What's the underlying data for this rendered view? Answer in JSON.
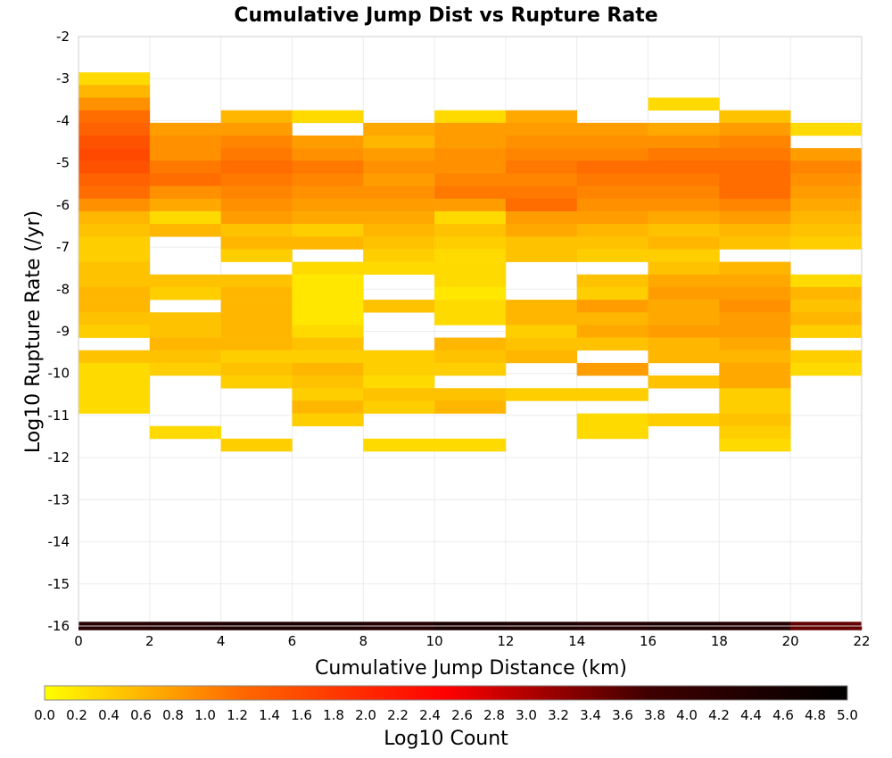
{
  "chart_data": {
    "type": "heatmap",
    "title": "Cumulative Jump Dist vs Rupture Rate",
    "xlabel": "Cumulative Jump Distance (km)",
    "ylabel": "Log10 Rupture Rate (/yr)",
    "xlim": [
      0,
      22
    ],
    "ylim": [
      -16,
      -2
    ],
    "x_ticks": [
      0,
      2,
      4,
      6,
      8,
      10,
      12,
      14,
      16,
      18,
      20,
      22
    ],
    "y_ticks": [
      -2,
      -3,
      -4,
      -5,
      -6,
      -7,
      -8,
      -9,
      -10,
      -11,
      -12,
      -13,
      -14,
      -15,
      -16
    ],
    "x_bin_width": 2,
    "y_bin_height": 0.3,
    "grid": true,
    "colorbar": {
      "label": "Log10 Count",
      "range": [
        0,
        5
      ],
      "ticks": [
        "0.0",
        "0.2",
        "0.4",
        "0.6",
        "0.8",
        "1.0",
        "1.2",
        "1.4",
        "1.6",
        "1.8",
        "2.0",
        "2.2",
        "2.4",
        "2.6",
        "2.8",
        "3.0",
        "3.2",
        "3.4",
        "3.6",
        "3.8",
        "4.0",
        "4.2",
        "4.4",
        "4.6",
        "4.8",
        "5.0"
      ],
      "colormap": [
        "#ffff00",
        "#ff6600",
        "#ff0000",
        "#400000",
        "#000000"
      ]
    },
    "columns": [
      {
        "x": 0,
        "cells": [
          [
            -3.0,
            0.3
          ],
          [
            -3.3,
            0.6
          ],
          [
            -3.6,
            0.9
          ],
          [
            -3.9,
            1.2
          ],
          [
            -4.2,
            1.3
          ],
          [
            -4.5,
            1.5
          ],
          [
            -4.8,
            1.6
          ],
          [
            -5.1,
            1.5
          ],
          [
            -5.4,
            1.3
          ],
          [
            -5.7,
            1.2
          ],
          [
            -6.0,
            0.9
          ],
          [
            -6.3,
            0.6
          ],
          [
            -6.6,
            0.5
          ],
          [
            -6.9,
            0.4
          ],
          [
            -7.2,
            0.4
          ],
          [
            -7.5,
            0.5
          ],
          [
            -7.8,
            0.5
          ],
          [
            -8.1,
            0.6
          ],
          [
            -8.4,
            0.6
          ],
          [
            -8.7,
            0.5
          ],
          [
            -9.0,
            0.4
          ],
          [
            -9.6,
            0.5
          ],
          [
            -9.9,
            0.3
          ],
          [
            -10.2,
            0.3
          ],
          [
            -10.5,
            0.3
          ],
          [
            -10.8,
            0.3
          ]
        ]
      },
      {
        "x": 2,
        "cells": [
          [
            -4.2,
            0.8
          ],
          [
            -4.5,
            0.9
          ],
          [
            -4.8,
            0.9
          ],
          [
            -5.1,
            1.1
          ],
          [
            -5.4,
            1.2
          ],
          [
            -5.7,
            0.9
          ],
          [
            -6.0,
            0.7
          ],
          [
            -6.3,
            0.3
          ],
          [
            -6.6,
            0.6
          ],
          [
            -7.8,
            0.5
          ],
          [
            -8.1,
            0.4
          ],
          [
            -8.7,
            0.5
          ],
          [
            -9.0,
            0.5
          ],
          [
            -9.3,
            0.6
          ],
          [
            -9.6,
            0.5
          ],
          [
            -9.9,
            0.4
          ],
          [
            -11.4,
            0.3
          ]
        ]
      },
      {
        "x": 4,
        "cells": [
          [
            -3.9,
            0.6
          ],
          [
            -4.2,
            0.8
          ],
          [
            -4.5,
            1.0
          ],
          [
            -4.8,
            1.1
          ],
          [
            -5.1,
            1.2
          ],
          [
            -5.4,
            1.1
          ],
          [
            -5.7,
            1.0
          ],
          [
            -6.0,
            0.9
          ],
          [
            -6.3,
            0.8
          ],
          [
            -6.6,
            0.5
          ],
          [
            -6.9,
            0.6
          ],
          [
            -7.2,
            0.4
          ],
          [
            -7.8,
            0.5
          ],
          [
            -8.1,
            0.6
          ],
          [
            -8.4,
            0.6
          ],
          [
            -8.7,
            0.6
          ],
          [
            -9.0,
            0.6
          ],
          [
            -9.3,
            0.6
          ],
          [
            -9.6,
            0.4
          ],
          [
            -9.9,
            0.5
          ],
          [
            -10.2,
            0.4
          ],
          [
            -11.7,
            0.4
          ]
        ]
      },
      {
        "x": 6,
        "cells": [
          [
            -3.9,
            0.3
          ],
          [
            -4.5,
            0.8
          ],
          [
            -4.8,
            0.9
          ],
          [
            -5.1,
            1.1
          ],
          [
            -5.4,
            1.0
          ],
          [
            -5.7,
            0.9
          ],
          [
            -6.0,
            0.8
          ],
          [
            -6.3,
            0.7
          ],
          [
            -6.6,
            0.4
          ],
          [
            -6.9,
            0.6
          ],
          [
            -7.5,
            0.3
          ],
          [
            -7.8,
            0.2
          ],
          [
            -8.1,
            0.2
          ],
          [
            -8.4,
            0.2
          ],
          [
            -8.7,
            0.2
          ],
          [
            -9.0,
            0.3
          ],
          [
            -9.3,
            0.5
          ],
          [
            -9.6,
            0.4
          ],
          [
            -9.9,
            0.6
          ],
          [
            -10.2,
            0.5
          ],
          [
            -10.5,
            0.4
          ],
          [
            -10.8,
            0.6
          ],
          [
            -11.1,
            0.4
          ]
        ]
      },
      {
        "x": 8,
        "cells": [
          [
            -4.2,
            0.7
          ],
          [
            -4.5,
            0.6
          ],
          [
            -4.8,
            0.8
          ],
          [
            -5.1,
            0.9
          ],
          [
            -5.4,
            0.8
          ],
          [
            -5.7,
            0.9
          ],
          [
            -6.0,
            0.8
          ],
          [
            -6.3,
            0.7
          ],
          [
            -6.6,
            0.6
          ],
          [
            -6.9,
            0.5
          ],
          [
            -7.2,
            0.4
          ],
          [
            -7.5,
            0.3
          ],
          [
            -8.4,
            0.5
          ],
          [
            -9.6,
            0.4
          ],
          [
            -9.9,
            0.4
          ],
          [
            -10.2,
            0.3
          ],
          [
            -10.5,
            0.5
          ],
          [
            -10.8,
            0.4
          ],
          [
            -11.7,
            0.3
          ]
        ]
      },
      {
        "x": 10,
        "cells": [
          [
            -3.9,
            0.3
          ],
          [
            -4.2,
            0.8
          ],
          [
            -4.5,
            0.8
          ],
          [
            -4.8,
            0.9
          ],
          [
            -5.1,
            0.9
          ],
          [
            -5.4,
            1.0
          ],
          [
            -5.7,
            1.1
          ],
          [
            -6.0,
            0.8
          ],
          [
            -6.3,
            0.3
          ],
          [
            -6.6,
            0.5
          ],
          [
            -6.9,
            0.4
          ],
          [
            -7.2,
            0.3
          ],
          [
            -7.5,
            0.3
          ],
          [
            -7.8,
            0.3
          ],
          [
            -8.1,
            0.2
          ],
          [
            -8.4,
            0.3
          ],
          [
            -8.7,
            0.3
          ],
          [
            -9.3,
            0.6
          ],
          [
            -9.6,
            0.5
          ],
          [
            -9.9,
            0.4
          ],
          [
            -10.5,
            0.5
          ],
          [
            -10.8,
            0.6
          ],
          [
            -11.7,
            0.3
          ]
        ]
      },
      {
        "x": 12,
        "cells": [
          [
            -3.9,
            0.7
          ],
          [
            -4.2,
            0.8
          ],
          [
            -4.5,
            0.9
          ],
          [
            -4.8,
            1.0
          ],
          [
            -5.1,
            1.1
          ],
          [
            -5.4,
            1.0
          ],
          [
            -5.7,
            1.1
          ],
          [
            -6.0,
            1.2
          ],
          [
            -6.3,
            0.8
          ],
          [
            -6.6,
            0.7
          ],
          [
            -6.9,
            0.5
          ],
          [
            -7.2,
            0.5
          ],
          [
            -8.4,
            0.6
          ],
          [
            -8.7,
            0.6
          ],
          [
            -9.0,
            0.4
          ],
          [
            -9.3,
            0.5
          ],
          [
            -9.6,
            0.6
          ],
          [
            -10.5,
            0.4
          ]
        ]
      },
      {
        "x": 14,
        "cells": [
          [
            -4.2,
            0.8
          ],
          [
            -4.5,
            0.9
          ],
          [
            -4.8,
            1.0
          ],
          [
            -5.1,
            1.2
          ],
          [
            -5.4,
            1.1
          ],
          [
            -5.7,
            1.0
          ],
          [
            -6.0,
            0.9
          ],
          [
            -6.3,
            0.8
          ],
          [
            -6.6,
            0.6
          ],
          [
            -6.9,
            0.5
          ],
          [
            -7.2,
            0.4
          ],
          [
            -7.8,
            0.5
          ],
          [
            -8.1,
            0.4
          ],
          [
            -8.4,
            0.8
          ],
          [
            -8.7,
            0.6
          ],
          [
            -9.0,
            0.7
          ],
          [
            -9.3,
            0.5
          ],
          [
            -9.9,
            0.8
          ],
          [
            -10.5,
            0.4
          ],
          [
            -11.1,
            0.3
          ],
          [
            -11.4,
            0.3
          ]
        ]
      },
      {
        "x": 16,
        "cells": [
          [
            -3.6,
            0.3
          ],
          [
            -4.2,
            0.7
          ],
          [
            -4.5,
            0.9
          ],
          [
            -4.8,
            1.1
          ],
          [
            -5.1,
            1.2
          ],
          [
            -5.4,
            1.1
          ],
          [
            -5.7,
            1.0
          ],
          [
            -6.0,
            0.9
          ],
          [
            -6.3,
            0.7
          ],
          [
            -6.6,
            0.5
          ],
          [
            -6.9,
            0.6
          ],
          [
            -7.2,
            0.4
          ],
          [
            -7.5,
            0.5
          ],
          [
            -7.8,
            0.7
          ],
          [
            -8.1,
            0.8
          ],
          [
            -8.4,
            0.7
          ],
          [
            -8.7,
            0.7
          ],
          [
            -9.0,
            0.8
          ],
          [
            -9.3,
            0.6
          ],
          [
            -9.6,
            0.6
          ],
          [
            -10.2,
            0.5
          ],
          [
            -11.1,
            0.4
          ]
        ]
      },
      {
        "x": 18,
        "cells": [
          [
            -3.9,
            0.5
          ],
          [
            -4.2,
            0.8
          ],
          [
            -4.5,
            1.0
          ],
          [
            -4.8,
            1.1
          ],
          [
            -5.1,
            1.2
          ],
          [
            -5.4,
            1.2
          ],
          [
            -5.7,
            1.2
          ],
          [
            -6.0,
            1.0
          ],
          [
            -6.3,
            0.8
          ],
          [
            -6.6,
            0.6
          ],
          [
            -6.9,
            0.5
          ],
          [
            -7.5,
            0.6
          ],
          [
            -7.8,
            0.7
          ],
          [
            -8.1,
            0.8
          ],
          [
            -8.4,
            0.9
          ],
          [
            -8.7,
            0.8
          ],
          [
            -9.0,
            0.8
          ],
          [
            -9.3,
            0.7
          ],
          [
            -9.6,
            0.6
          ],
          [
            -9.9,
            0.7
          ],
          [
            -10.2,
            0.7
          ],
          [
            -10.5,
            0.4
          ],
          [
            -10.8,
            0.4
          ],
          [
            -11.1,
            0.5
          ],
          [
            -11.4,
            0.4
          ],
          [
            -11.7,
            0.3
          ]
        ]
      },
      {
        "x": 20,
        "cells": [
          [
            -4.2,
            0.3
          ],
          [
            -4.8,
            0.8
          ],
          [
            -5.1,
            1.0
          ],
          [
            -5.4,
            0.9
          ],
          [
            -5.7,
            0.8
          ],
          [
            -6.0,
            0.7
          ],
          [
            -6.3,
            0.6
          ],
          [
            -6.6,
            0.5
          ],
          [
            -6.9,
            0.4
          ],
          [
            -7.8,
            0.3
          ],
          [
            -8.1,
            0.6
          ],
          [
            -8.4,
            0.5
          ],
          [
            -8.7,
            0.6
          ],
          [
            -9.0,
            0.4
          ],
          [
            -9.6,
            0.4
          ],
          [
            -9.9,
            0.3
          ]
        ]
      }
    ],
    "bottom_band": {
      "y": -16,
      "values": [
        4.2,
        4.3,
        4.4,
        4.4,
        4.3,
        4.5,
        4.4,
        4.3,
        4.4,
        4.3,
        3.5
      ]
    }
  }
}
